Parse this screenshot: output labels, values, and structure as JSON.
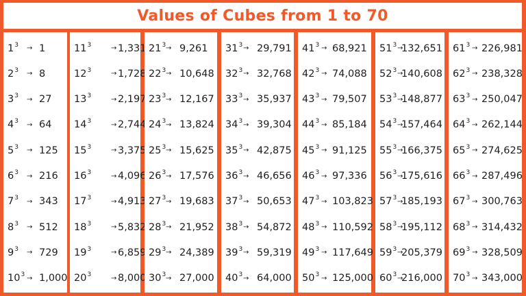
{
  "title": "Values of Cubes from 1 to 70",
  "colors": {
    "accent": "#f05a2a",
    "background": "#ffffff",
    "text": "#1e1e1e"
  },
  "exponent": "3",
  "arrow_icon": "→",
  "columns": [
    {
      "rows": [
        {
          "base": "1",
          "value": "1"
        },
        {
          "base": "2",
          "value": "8"
        },
        {
          "base": "3",
          "value": "27"
        },
        {
          "base": "4",
          "value": "64"
        },
        {
          "base": "5",
          "value": "125"
        },
        {
          "base": "6",
          "value": "216"
        },
        {
          "base": "7",
          "value": "343"
        },
        {
          "base": "8",
          "value": "512"
        },
        {
          "base": "9",
          "value": "729"
        },
        {
          "base": "10",
          "value": "1,000"
        }
      ]
    },
    {
      "rows": [
        {
          "base": "11",
          "value": "1,331"
        },
        {
          "base": "12",
          "value": "1,728"
        },
        {
          "base": "13",
          "value": "2,197"
        },
        {
          "base": "14",
          "value": "2,744"
        },
        {
          "base": "15",
          "value": "3,375"
        },
        {
          "base": "16",
          "value": "4,096"
        },
        {
          "base": "17",
          "value": "4,913"
        },
        {
          "base": "18",
          "value": "5,832"
        },
        {
          "base": "19",
          "value": "6,859"
        },
        {
          "base": "20",
          "value": "8,000"
        }
      ]
    },
    {
      "rows": [
        {
          "base": "21",
          "value": "9,261"
        },
        {
          "base": "22",
          "value": "10,648"
        },
        {
          "base": "23",
          "value": "12,167"
        },
        {
          "base": "24",
          "value": "13,824"
        },
        {
          "base": "25",
          "value": "15,625"
        },
        {
          "base": "26",
          "value": "17,576"
        },
        {
          "base": "27",
          "value": "19,683"
        },
        {
          "base": "28",
          "value": "21,952"
        },
        {
          "base": "29",
          "value": "24,389"
        },
        {
          "base": "30",
          "value": "27,000"
        }
      ]
    },
    {
      "rows": [
        {
          "base": "31",
          "value": "29,791"
        },
        {
          "base": "32",
          "value": "32,768"
        },
        {
          "base": "33",
          "value": "35,937"
        },
        {
          "base": "34",
          "value": "39,304"
        },
        {
          "base": "35",
          "value": "42,875"
        },
        {
          "base": "36",
          "value": "46,656"
        },
        {
          "base": "37",
          "value": "50,653"
        },
        {
          "base": "38",
          "value": "54,872"
        },
        {
          "base": "39",
          "value": "59,319"
        },
        {
          "base": "40",
          "value": "64,000"
        }
      ]
    },
    {
      "rows": [
        {
          "base": "41",
          "value": "68,921"
        },
        {
          "base": "42",
          "value": "74,088"
        },
        {
          "base": "43",
          "value": "79,507"
        },
        {
          "base": "44",
          "value": "85,184"
        },
        {
          "base": "45",
          "value": "91,125"
        },
        {
          "base": "46",
          "value": "97,336"
        },
        {
          "base": "47",
          "value": "103,823"
        },
        {
          "base": "48",
          "value": "110,592"
        },
        {
          "base": "49",
          "value": "117,649"
        },
        {
          "base": "50",
          "value": "125,000"
        }
      ]
    },
    {
      "rows": [
        {
          "base": "51",
          "value": "132,651"
        },
        {
          "base": "52",
          "value": "140,608"
        },
        {
          "base": "53",
          "value": "148,877"
        },
        {
          "base": "54",
          "value": "157,464"
        },
        {
          "base": "55",
          "value": "166,375"
        },
        {
          "base": "56",
          "value": "175,616"
        },
        {
          "base": "57",
          "value": "185,193"
        },
        {
          "base": "58",
          "value": "195,112"
        },
        {
          "base": "59",
          "value": "205,379"
        },
        {
          "base": "60",
          "value": "216,000"
        }
      ]
    },
    {
      "rows": [
        {
          "base": "61",
          "value": "226,981"
        },
        {
          "base": "62",
          "value": "238,328"
        },
        {
          "base": "63",
          "value": "250,047"
        },
        {
          "base": "64",
          "value": "262,144"
        },
        {
          "base": "65",
          "value": "274,625"
        },
        {
          "base": "66",
          "value": "287,496"
        },
        {
          "base": "67",
          "value": "300,763"
        },
        {
          "base": "68",
          "value": "314,432"
        },
        {
          "base": "69",
          "value": "328,509"
        },
        {
          "base": "70",
          "value": "343,000"
        }
      ]
    }
  ]
}
